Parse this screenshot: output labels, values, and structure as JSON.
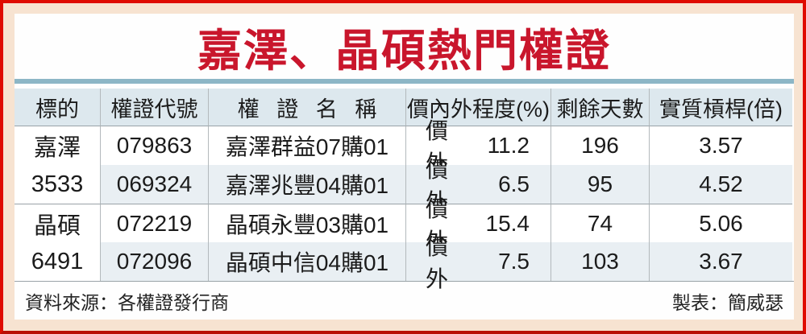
{
  "title": "嘉澤、晶碩熱門權證",
  "colors": {
    "frame_red": "#df0b00",
    "background_cream": "#f7e3d1",
    "title_red": "#c9162c",
    "divider_blue": "#8cb6c6",
    "header_bg": "#dde8ee",
    "stripe_bg": "#e9eff3"
  },
  "chart_data": {
    "type": "table",
    "title": "嘉澤、晶碩熱門權證",
    "columns": [
      "標的",
      "權證代號",
      "權 證 名 稱",
      "價內外程度(%)",
      "剩餘天數",
      "實質槓桿(倍)"
    ],
    "groups": [
      {
        "target_name": "嘉澤",
        "target_code": "3533",
        "warrants": [
          {
            "code": "079863",
            "name": "嘉澤群益07購01",
            "moneyness_status": "價外",
            "moneyness_value": "11.2",
            "remaining_days": "196",
            "leverage": "3.57"
          },
          {
            "code": "069324",
            "name": "嘉澤兆豐04購01",
            "moneyness_status": "價外",
            "moneyness_value": "6.5",
            "remaining_days": "95",
            "leverage": "4.52"
          }
        ]
      },
      {
        "target_name": "晶碩",
        "target_code": "6491",
        "warrants": [
          {
            "code": "072219",
            "name": "晶碩永豐03購01",
            "moneyness_status": "價外",
            "moneyness_value": "15.4",
            "remaining_days": "74",
            "leverage": "5.06"
          },
          {
            "code": "072096",
            "name": "晶碩中信04購01",
            "moneyness_status": "價外",
            "moneyness_value": "7.5",
            "remaining_days": "103",
            "leverage": "3.67"
          }
        ]
      }
    ]
  },
  "footer": {
    "source": "資料來源：各權證發行商",
    "credit": "製表：簡威瑟"
  }
}
